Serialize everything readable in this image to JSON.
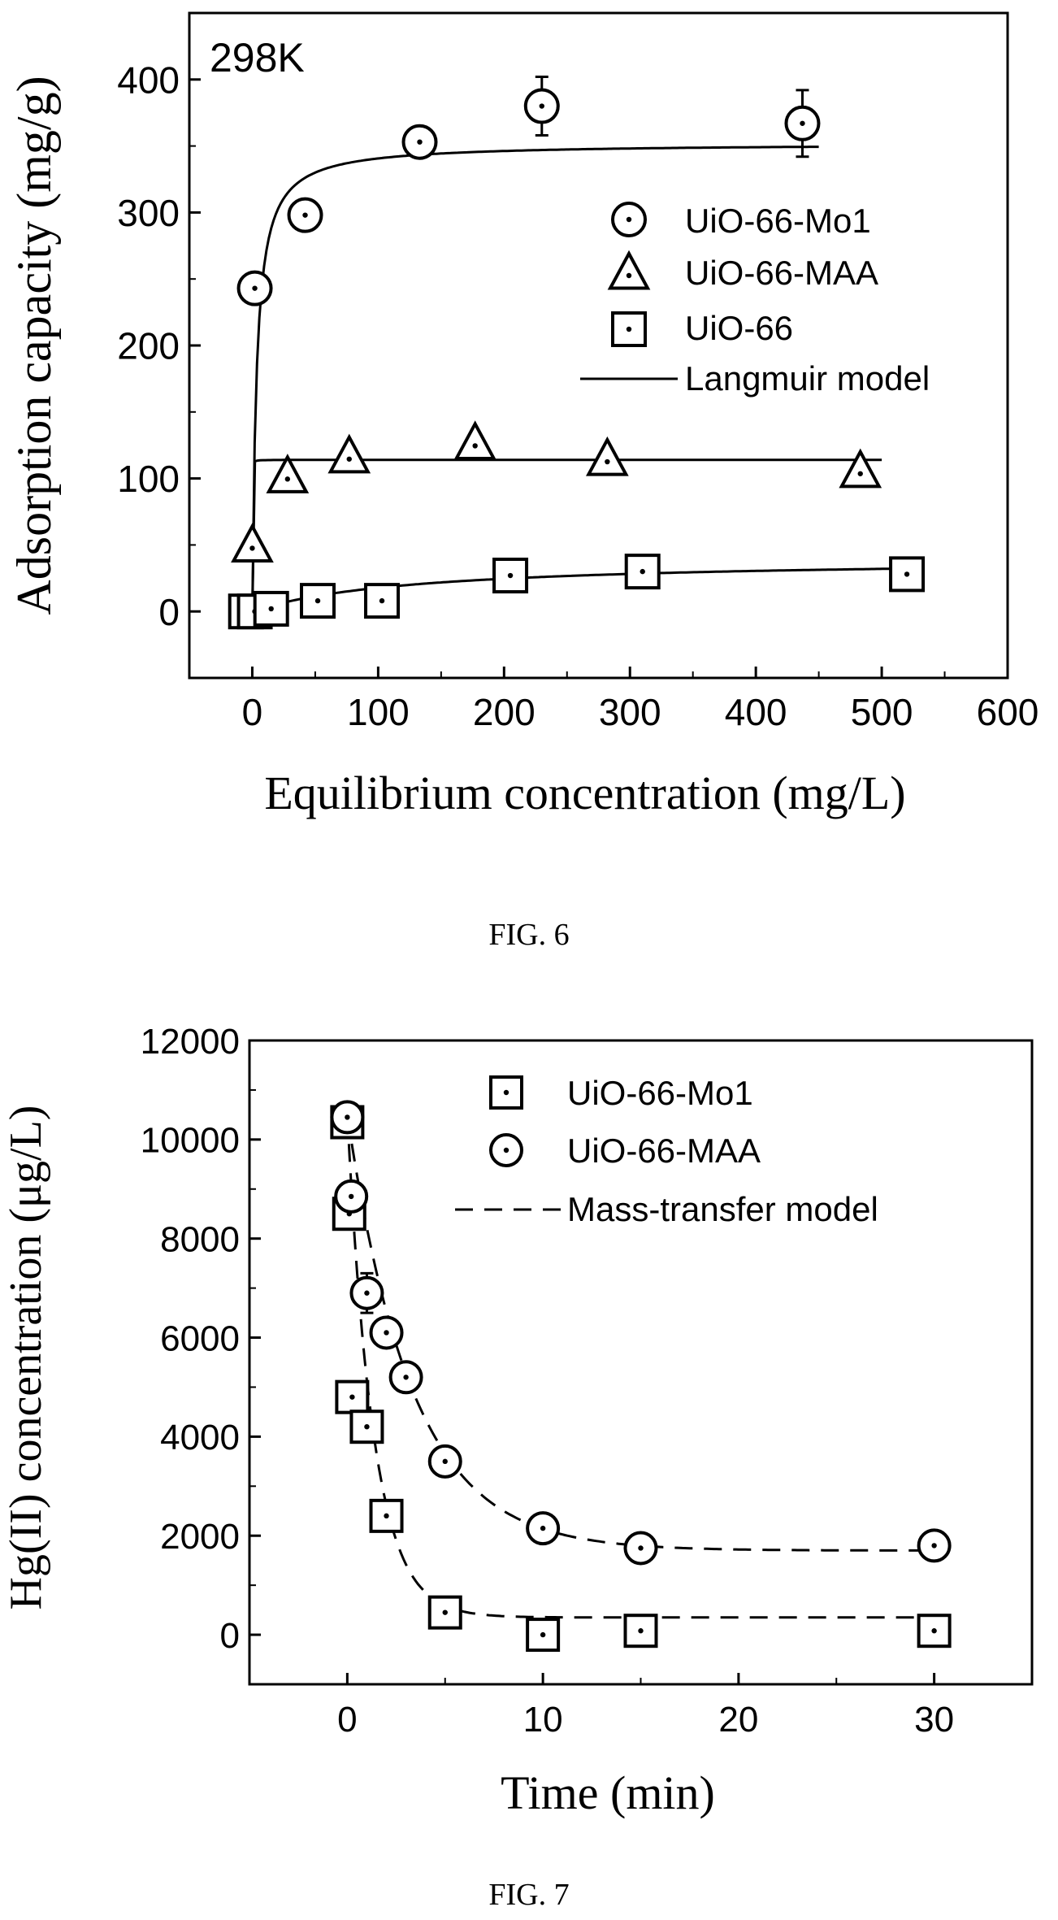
{
  "page": {
    "fig6_caption": "FIG. 6",
    "fig7_caption": "FIG. 7"
  },
  "chart_data": [
    {
      "type": "scatter",
      "annotation": "298K",
      "xlabel": "Equilibrium concentration (mg/L)",
      "ylabel": "Adsorption capacity (mg/g)",
      "xlim": [
        -50,
        600
      ],
      "ylim": [
        -50,
        450
      ],
      "xticks": [
        0,
        100,
        200,
        300,
        400,
        500,
        600
      ],
      "yticks": [
        0,
        100,
        200,
        300,
        400
      ],
      "legend_position": "right",
      "legend": [
        {
          "label": "UiO-66-Mo1",
          "marker": "circle"
        },
        {
          "label": "UiO-66-MAA",
          "marker": "triangle"
        },
        {
          "label": "UiO-66",
          "marker": "square"
        },
        {
          "label": "Langmuir model",
          "marker": "solid-line"
        }
      ],
      "series": [
        {
          "name": "UiO-66-Mo1",
          "marker": "circle",
          "points": [
            {
              "x": 2,
              "y": 243,
              "err": 0
            },
            {
              "x": 42,
              "y": 298,
              "err": 0
            },
            {
              "x": 133,
              "y": 353,
              "err": 0
            },
            {
              "x": 230,
              "y": 380,
              "err": 22
            },
            {
              "x": 437,
              "y": 367,
              "err": 25
            }
          ],
          "model": {
            "type": "langmuir",
            "qmax": 352,
            "K": 0.3,
            "x_range": [
              0,
              450
            ]
          }
        },
        {
          "name": "UiO-66-MAA",
          "marker": "triangle",
          "points": [
            {
              "x": 0,
              "y": 50,
              "err": 0
            },
            {
              "x": 28,
              "y": 102,
              "err": 0
            },
            {
              "x": 77,
              "y": 117,
              "err": 0
            },
            {
              "x": 177,
              "y": 127,
              "err": 0
            },
            {
              "x": 282,
              "y": 115,
              "err": 0
            },
            {
              "x": 483,
              "y": 106,
              "err": 0
            }
          ],
          "model": {
            "type": "langmuir",
            "qmax": 114,
            "K": 50,
            "x_range": [
              0,
              500
            ]
          }
        },
        {
          "name": "UiO-66",
          "marker": "square",
          "points": [
            {
              "x": -5,
              "y": 0,
              "err": 0
            },
            {
              "x": 2,
              "y": 0,
              "err": 0
            },
            {
              "x": 15,
              "y": 2,
              "err": 0
            },
            {
              "x": 52,
              "y": 8,
              "err": 0
            },
            {
              "x": 103,
              "y": 8,
              "err": 0
            },
            {
              "x": 205,
              "y": 27,
              "err": 0
            },
            {
              "x": 310,
              "y": 30,
              "err": 0
            },
            {
              "x": 520,
              "y": 28,
              "err": 0
            }
          ],
          "model": {
            "type": "langmuir",
            "qmax": 40,
            "K": 0.008,
            "x_range": [
              0,
              520
            ]
          }
        }
      ]
    },
    {
      "type": "scatter",
      "xlabel": "Time (min)",
      "ylabel": "Hg(II) concentration (μg/L)",
      "xlim": [
        -5,
        35
      ],
      "ylim": [
        -1000,
        12000
      ],
      "xticks": [
        0,
        10,
        20,
        30
      ],
      "yticks": [
        0,
        2000,
        4000,
        6000,
        8000,
        10000,
        12000
      ],
      "legend_position": "top-right",
      "legend": [
        {
          "label": "UiO-66-Mo1",
          "marker": "square"
        },
        {
          "label": "UiO-66-MAA",
          "marker": "circle"
        },
        {
          "label": "Mass-transfer model",
          "marker": "dashed-line"
        }
      ],
      "series": [
        {
          "name": "UiO-66-Mo1",
          "marker": "square",
          "points": [
            {
              "x": 0,
              "y": 10350,
              "err": 0
            },
            {
              "x": 0.1,
              "y": 8500,
              "err": 0
            },
            {
              "x": 0.25,
              "y": 4800,
              "err": 0
            },
            {
              "x": 1,
              "y": 4200,
              "err": 0
            },
            {
              "x": 2,
              "y": 2400,
              "err": 0
            },
            {
              "x": 5,
              "y": 450,
              "err": 0
            },
            {
              "x": 10,
              "y": 0,
              "err": 0
            },
            {
              "x": 15,
              "y": 80,
              "err": 0
            },
            {
              "x": 30,
              "y": 80,
              "err": 0
            }
          ],
          "model": {
            "type": "mass-transfer",
            "c0": 10500,
            "c_eq": 350,
            "k": 0.75,
            "x_range": [
              0,
              30
            ]
          }
        },
        {
          "name": "UiO-66-MAA",
          "marker": "circle",
          "points": [
            {
              "x": 0,
              "y": 10450,
              "err": 0
            },
            {
              "x": 0.2,
              "y": 8850,
              "err": 0
            },
            {
              "x": 1,
              "y": 6900,
              "err": 400
            },
            {
              "x": 2,
              "y": 6100,
              "err": 0
            },
            {
              "x": 3,
              "y": 5200,
              "err": 0
            },
            {
              "x": 5,
              "y": 3500,
              "err": 0
            },
            {
              "x": 10,
              "y": 2150,
              "err": 0
            },
            {
              "x": 15,
              "y": 1750,
              "err": 0
            },
            {
              "x": 30,
              "y": 1800,
              "err": 0
            }
          ],
          "model": {
            "type": "mass-transfer",
            "c0": 10500,
            "c_eq": 1700,
            "k": 0.3,
            "x_range": [
              0,
              30
            ]
          }
        }
      ]
    }
  ]
}
